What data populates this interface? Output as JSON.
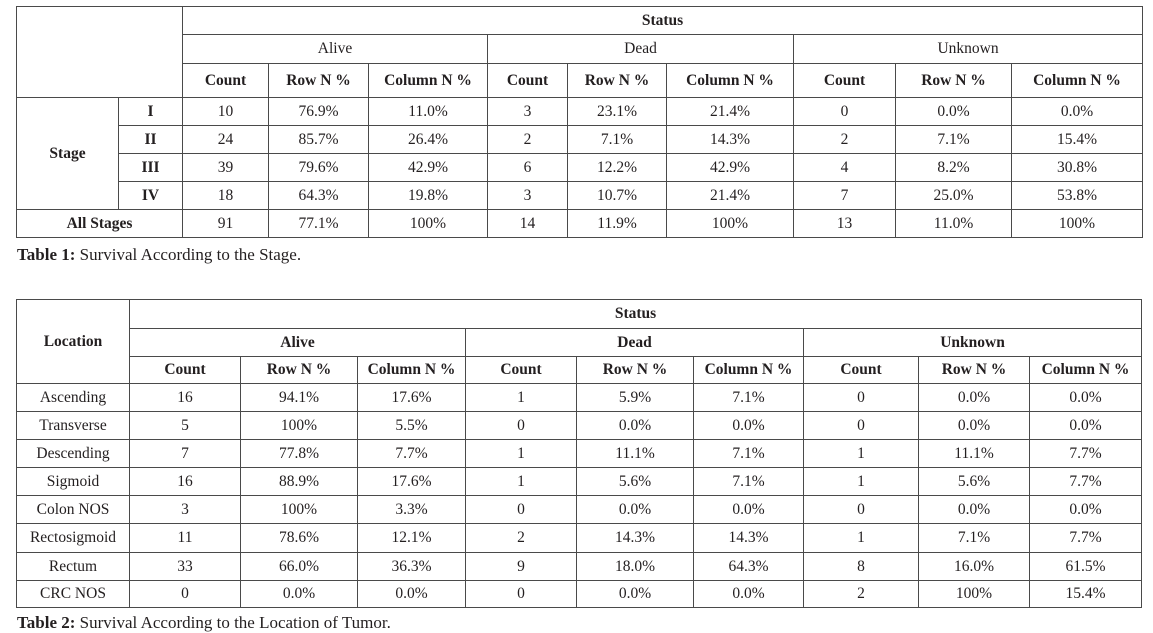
{
  "table1": {
    "status_header": "Status",
    "groups": [
      "Alive",
      "Dead",
      "Unknown"
    ],
    "subheaders": [
      "Count",
      "Row N %",
      "Column N %"
    ],
    "row_group_label": "Stage",
    "rows": [
      {
        "label": "I",
        "cells": [
          "10",
          "76.9%",
          "11.0%",
          "3",
          "23.1%",
          "21.4%",
          "0",
          "0.0%",
          "0.0%"
        ]
      },
      {
        "label": "II",
        "cells": [
          "24",
          "85.7%",
          "26.4%",
          "2",
          "7.1%",
          "14.3%",
          "2",
          "7.1%",
          "15.4%"
        ]
      },
      {
        "label": "III",
        "cells": [
          "39",
          "79.6%",
          "42.9%",
          "6",
          "12.2%",
          "42.9%",
          "4",
          "8.2%",
          "30.8%"
        ]
      },
      {
        "label": "IV",
        "cells": [
          "18",
          "64.3%",
          "19.8%",
          "3",
          "10.7%",
          "21.4%",
          "7",
          "25.0%",
          "53.8%"
        ]
      }
    ],
    "total_row": {
      "label": "All Stages",
      "cells": [
        "91",
        "77.1%",
        "100%",
        "14",
        "11.9%",
        "100%",
        "13",
        "11.0%",
        "100%"
      ]
    },
    "caption_bold": "Table 1:",
    "caption_text": " Survival According to the Stage."
  },
  "table2": {
    "status_header": "Status",
    "location_header": "Location",
    "groups": [
      "Alive",
      "Dead",
      "Unknown"
    ],
    "subheaders": [
      "Count",
      "Row N %",
      "Column N %"
    ],
    "rows": [
      {
        "label": "Ascending",
        "cells": [
          "16",
          "94.1%",
          "17.6%",
          "1",
          "5.9%",
          "7.1%",
          "0",
          "0.0%",
          "0.0%"
        ]
      },
      {
        "label": "Transverse",
        "cells": [
          "5",
          "100%",
          "5.5%",
          "0",
          "0.0%",
          "0.0%",
          "0",
          "0.0%",
          "0.0%"
        ]
      },
      {
        "label": "Descending",
        "cells": [
          "7",
          "77.8%",
          "7.7%",
          "1",
          "11.1%",
          "7.1%",
          "1",
          "11.1%",
          "7.7%"
        ]
      },
      {
        "label": "Sigmoid",
        "cells": [
          "16",
          "88.9%",
          "17.6%",
          "1",
          "5.6%",
          "7.1%",
          "1",
          "5.6%",
          "7.7%"
        ]
      },
      {
        "label": "Colon NOS",
        "cells": [
          "3",
          "100%",
          "3.3%",
          "0",
          "0.0%",
          "0.0%",
          "0",
          "0.0%",
          "0.0%"
        ]
      },
      {
        "label": "Rectosigmoid",
        "cells": [
          "11",
          "78.6%",
          "12.1%",
          "2",
          "14.3%",
          "14.3%",
          "1",
          "7.1%",
          "7.7%"
        ]
      },
      {
        "label": "Rectum",
        "cells": [
          "33",
          "66.0%",
          "36.3%",
          "9",
          "18.0%",
          "64.3%",
          "8",
          "16.0%",
          "61.5%"
        ]
      },
      {
        "label": "CRC NOS",
        "cells": [
          "0",
          "0.0%",
          "0.0%",
          "0",
          "0.0%",
          "0.0%",
          "2",
          "100%",
          "15.4%"
        ]
      }
    ],
    "caption_bold": "Table 2:",
    "caption_text": " Survival According to the Location of Tumor."
  }
}
